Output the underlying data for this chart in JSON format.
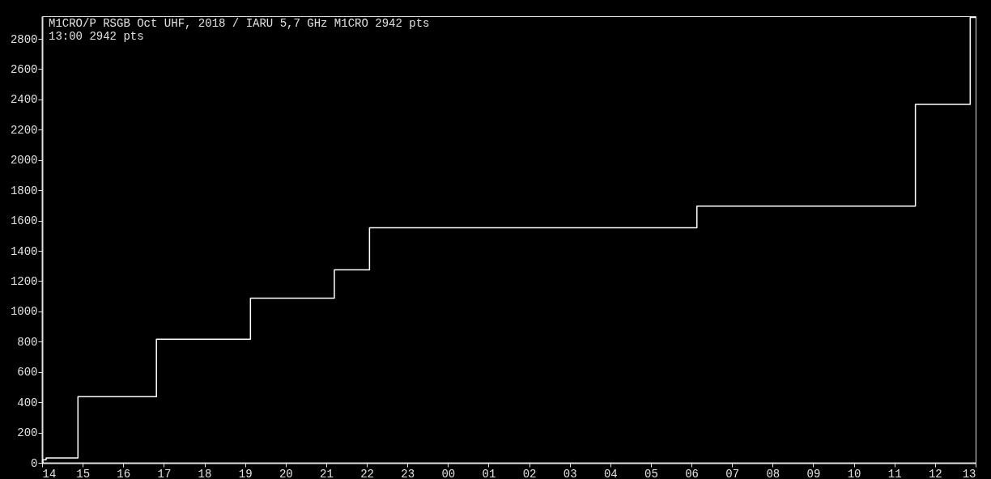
{
  "chart_data": {
    "type": "step",
    "title": "M1CRO/P      RSGB Oct UHF, 2018 / IARU      5,7 GHz  M1CRO  2942 pts",
    "subtitle": "13:00  2942 pts",
    "x": [
      "2018-10-06T14:00",
      "2018-10-06T14:01",
      "2018-10-06T14:06",
      "2018-10-06T14:53",
      "2018-10-06T16:49",
      "2018-10-06T19:08",
      "2018-10-06T21:12",
      "2018-10-06T22:04",
      "2018-10-07T06:08",
      "2018-10-07T11:31",
      "2018-10-07T12:52",
      "2018-10-07T13:00"
    ],
    "series": [
      {
        "color": "#ffffff",
        "values": [
          0,
          20,
          32,
          437,
          816,
          1088,
          1275,
          1552,
          1696,
          2368,
          2942,
          2942
        ]
      }
    ],
    "xlim": [
      "2018-10-06T14:00",
      "2018-10-07T13:00"
    ],
    "xticks": [
      {
        "value": "2018-10-06T14:00",
        "label": "14"
      },
      {
        "value": "2018-10-06T15:00",
        "label": "15"
      },
      {
        "value": "2018-10-06T16:00",
        "label": "16"
      },
      {
        "value": "2018-10-06T17:00",
        "label": "17"
      },
      {
        "value": "2018-10-06T18:00",
        "label": "18"
      },
      {
        "value": "2018-10-06T19:00",
        "label": "19"
      },
      {
        "value": "2018-10-06T20:00",
        "label": "20"
      },
      {
        "value": "2018-10-06T21:00",
        "label": "21"
      },
      {
        "value": "2018-10-06T22:00",
        "label": "22"
      },
      {
        "value": "2018-10-06T23:00",
        "label": "23"
      },
      {
        "value": "2018-10-07T00:00",
        "label": "00"
      },
      {
        "value": "2018-10-07T01:00",
        "label": "01"
      },
      {
        "value": "2018-10-07T02:00",
        "label": "02"
      },
      {
        "value": "2018-10-07T03:00",
        "label": "03"
      },
      {
        "value": "2018-10-07T04:00",
        "label": "04"
      },
      {
        "value": "2018-10-07T05:00",
        "label": "05"
      },
      {
        "value": "2018-10-07T06:00",
        "label": "06"
      },
      {
        "value": "2018-10-07T07:00",
        "label": "07"
      },
      {
        "value": "2018-10-07T08:00",
        "label": "08"
      },
      {
        "value": "2018-10-07T09:00",
        "label": "09"
      },
      {
        "value": "2018-10-07T10:00",
        "label": "10"
      },
      {
        "value": "2018-10-07T11:00",
        "label": "11"
      },
      {
        "value": "2018-10-07T12:00",
        "label": "12"
      },
      {
        "value": "2018-10-07T13:00",
        "label": "13"
      }
    ],
    "ylim": [
      0,
      2950
    ],
    "yticks": [
      0,
      200,
      400,
      600,
      800,
      1000,
      1200,
      1400,
      1600,
      1800,
      2000,
      2200,
      2400,
      2600,
      2800
    ],
    "grid": false,
    "marker": "none",
    "line_style": "solid"
  }
}
